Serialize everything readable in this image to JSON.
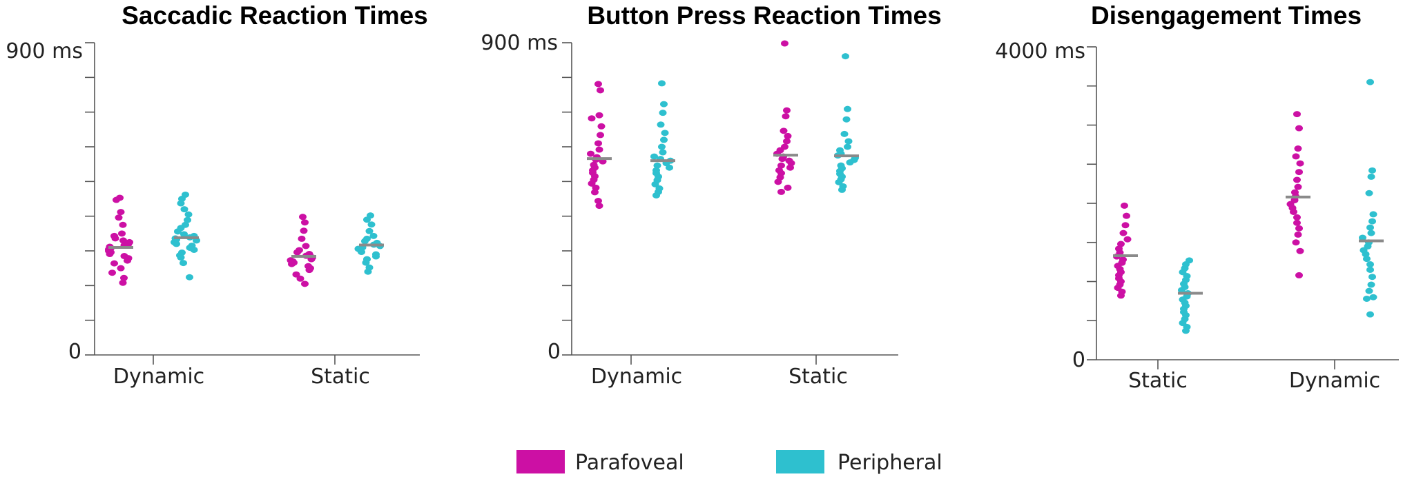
{
  "colors": {
    "parafoveal": "#cc10a4",
    "peripheral": "#2ec0cf",
    "mean": "#8a8a8a",
    "axis": "#555555"
  },
  "legend": [
    {
      "label": "Parafoveal",
      "color": "#cc10a4"
    },
    {
      "label": "Peripheral",
      "color": "#2ec0cf"
    }
  ],
  "chart_data": [
    {
      "type": "scatter",
      "title": "Saccadic Reaction Times",
      "ylim": [
        0,
        900
      ],
      "ytick_labels": [
        "0",
        "900 ms"
      ],
      "yticks_minor": [
        0,
        100,
        200,
        300,
        400,
        500,
        600,
        700,
        800,
        900
      ],
      "categories": [
        "Dynamic",
        "Static"
      ],
      "series": [
        {
          "name": "Parafoveal",
          "category": "Dynamic",
          "mean": 310,
          "values": [
            453,
            447,
            412,
            396,
            375,
            350,
            343,
            336,
            330,
            325,
            320,
            316,
            312,
            308,
            304,
            300,
            296,
            291,
            285,
            279,
            272,
            264,
            250,
            237,
            222,
            208
          ]
        },
        {
          "name": "Peripheral",
          "category": "Dynamic",
          "mean": 338,
          "values": [
            462,
            450,
            437,
            420,
            405,
            389,
            375,
            366,
            356,
            348,
            343,
            339,
            336,
            333,
            330,
            325,
            320,
            315,
            309,
            303,
            295,
            287,
            281,
            265,
            224
          ]
        },
        {
          "name": "Parafoveal",
          "category": "Static",
          "mean": 284,
          "values": [
            398,
            382,
            358,
            335,
            314,
            302,
            296,
            291,
            286,
            281,
            276,
            273,
            270,
            266,
            262,
            256,
            250,
            245,
            232,
            220,
            205
          ]
        },
        {
          "name": "Peripheral",
          "category": "Static",
          "mean": 317,
          "values": [
            402,
            390,
            376,
            357,
            343,
            335,
            328,
            323,
            318,
            314,
            310,
            306,
            302,
            297,
            290,
            284,
            276,
            266,
            252,
            240
          ]
        }
      ]
    },
    {
      "type": "scatter",
      "title": "Button Press Reaction Times",
      "ylim": [
        0,
        900
      ],
      "ytick_labels": [
        "0",
        "900 ms"
      ],
      "yticks_minor": [
        0,
        100,
        200,
        300,
        400,
        500,
        600,
        700,
        800,
        900
      ],
      "categories": [
        "Dynamic",
        "Static"
      ],
      "series": [
        {
          "name": "Parafoveal",
          "category": "Dynamic",
          "mean": 566,
          "values": [
            781,
            763,
            691,
            682,
            659,
            634,
            610,
            592,
            580,
            570,
            563,
            558,
            548,
            540,
            532,
            525,
            515,
            505,
            494,
            482,
            469,
            444,
            430
          ]
        },
        {
          "name": "Peripheral",
          "category": "Dynamic",
          "mean": 560,
          "values": [
            783,
            723,
            698,
            664,
            640,
            620,
            600,
            584,
            572,
            565,
            560,
            553,
            546,
            540,
            532,
            524,
            514,
            504,
            492,
            480,
            470,
            460
          ]
        },
        {
          "name": "Parafoveal",
          "category": "Static",
          "mean": 576,
          "values": [
            898,
            705,
            688,
            646,
            631,
            616,
            600,
            590,
            580,
            572,
            565,
            560,
            553,
            546,
            540,
            532,
            524,
            512,
            499,
            482,
            470
          ]
        },
        {
          "name": "Peripheral",
          "category": "Static",
          "mean": 574,
          "values": [
            861,
            709,
            679,
            637,
            616,
            600,
            590,
            580,
            575,
            568,
            562,
            555,
            546,
            538,
            530,
            522,
            514,
            506,
            498,
            486,
            476
          ]
        }
      ]
    },
    {
      "type": "scatter",
      "title": "Disengagement Times",
      "ylim": [
        0,
        4000
      ],
      "ytick_labels": [
        "0",
        "4000 ms"
      ],
      "yticks_minor": [
        0,
        500,
        1000,
        1500,
        2000,
        2500,
        3000,
        3500,
        4000
      ],
      "categories": [
        "Static",
        "Dynamic"
      ],
      "series": [
        {
          "name": "Parafoveal",
          "category": "Static",
          "mean": 1330,
          "values": [
            1970,
            1840,
            1720,
            1620,
            1540,
            1480,
            1420,
            1370,
            1320,
            1280,
            1240,
            1200,
            1160,
            1120,
            1080,
            1040,
            1000,
            960,
            920,
            870,
            820
          ]
        },
        {
          "name": "Peripheral",
          "category": "Static",
          "mean": 850,
          "values": [
            1270,
            1220,
            1170,
            1120,
            1070,
            1020,
            970,
            930,
            890,
            850,
            810,
            770,
            730,
            690,
            650,
            610,
            570,
            520,
            470,
            420,
            370
          ]
        },
        {
          "name": "Parafoveal",
          "category": "Dynamic",
          "mean": 2080,
          "values": [
            3140,
            2960,
            2700,
            2600,
            2510,
            2400,
            2300,
            2210,
            2140,
            2090,
            2040,
            1990,
            1940,
            1890,
            1820,
            1750,
            1680,
            1600,
            1500,
            1390,
            1080
          ]
        },
        {
          "name": "Peripheral",
          "category": "Dynamic",
          "mean": 1520,
          "values": [
            3550,
            2420,
            2340,
            2130,
            1860,
            1770,
            1690,
            1620,
            1560,
            1500,
            1450,
            1400,
            1350,
            1290,
            1220,
            1150,
            1060,
            960,
            880,
            800,
            780,
            580
          ]
        }
      ]
    }
  ]
}
